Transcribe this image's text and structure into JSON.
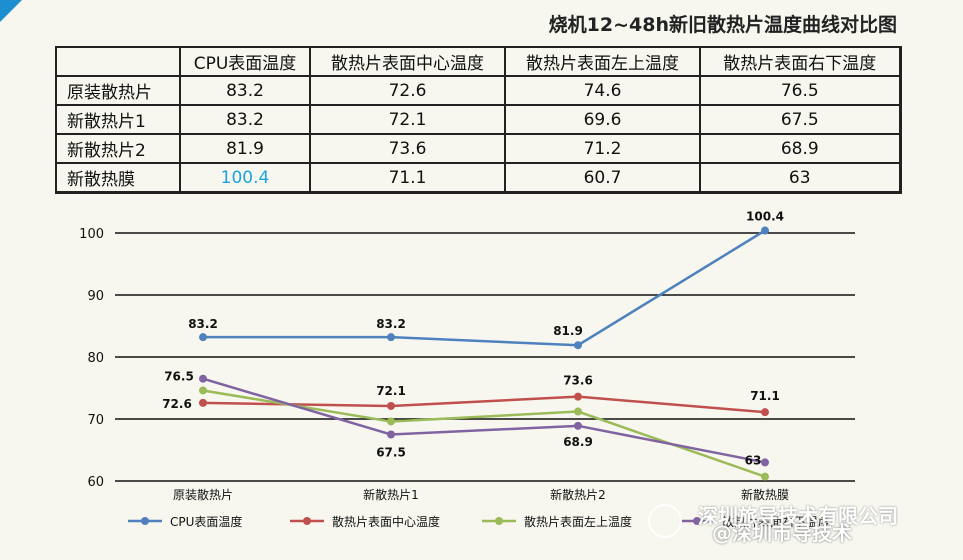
{
  "title": "烧机12~48h新旧散热片温度曲线对比图",
  "table": {
    "headers": [
      "",
      "CPU表面温度",
      "散热片表面中心温度",
      "散热片表面左上温度",
      "散热片表面右下温度"
    ],
    "rows": [
      {
        "label": "原装散热片",
        "cells": [
          "83.2",
          "72.6",
          "74.6",
          "76.5"
        ]
      },
      {
        "label": "新散热片1",
        "cells": [
          "83.2",
          "72.1",
          "69.6",
          "67.5"
        ]
      },
      {
        "label": "新散热片2",
        "cells": [
          "81.9",
          "73.6",
          "71.2",
          "68.9"
        ]
      },
      {
        "label": "新散热膜",
        "cells": [
          "100.4",
          "71.1",
          "60.7",
          "63"
        ]
      }
    ],
    "highlight_color": "#1aa3e0"
  },
  "chart_data": {
    "type": "line",
    "categories": [
      "原装散热片",
      "新散热片1",
      "新散热片2",
      "新散热膜"
    ],
    "ylim": [
      60,
      100
    ],
    "yticks": [
      "100",
      "90",
      "80",
      "70",
      "60"
    ],
    "grid": true,
    "legend_position": "bottom",
    "series": [
      {
        "name": "CPU表面温度",
        "color": "#4e81bd",
        "values": [
          83.2,
          83.2,
          81.9,
          100.4
        ],
        "labels": [
          "83.2",
          "83.2",
          "81.9",
          "100.4"
        ]
      },
      {
        "name": "散热片表面中心温度",
        "color": "#c0504d",
        "values": [
          72.6,
          72.1,
          73.6,
          71.1
        ],
        "labels": [
          "72.6",
          "72.1",
          "73.6",
          "71.1"
        ]
      },
      {
        "name": "散热片表面左上温度",
        "color": "#9bbb59",
        "values": [
          74.6,
          69.6,
          71.2,
          60.7
        ],
        "labels": []
      },
      {
        "name": "散热片表面右下温度",
        "color": "#8064a2",
        "values": [
          76.5,
          67.5,
          68.9,
          63
        ],
        "labels": [
          "76.5",
          "67.5",
          "68.9",
          "63"
        ]
      }
    ]
  },
  "watermark": {
    "line1": "深圳旅导技术有限公司",
    "line2": "@深圳市导技术",
    "icon": "wechat-icon"
  }
}
